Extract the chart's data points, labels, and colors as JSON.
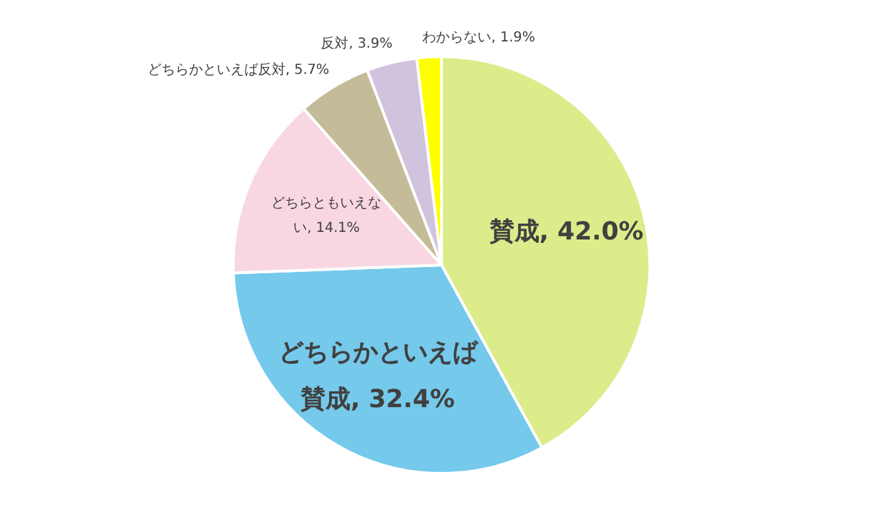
{
  "chart_data": {
    "type": "pie",
    "categories": [
      "賛成",
      "どちらかといえば賛成",
      "どちらともいえない",
      "どちらかといえば反対",
      "反対",
      "わからない"
    ],
    "values": [
      42.0,
      32.4,
      14.1,
      5.7,
      3.9,
      1.9
    ],
    "colors": [
      "#dcec8a",
      "#75c9ea",
      "#f8d7e3",
      "#c4bb98",
      "#d0c3de",
      "#ffff00"
    ],
    "value_labels": [
      "42.0%",
      "32.4%",
      "14.1%",
      "5.7%",
      "3.9%",
      "1.9%"
    ],
    "legend": false
  }
}
